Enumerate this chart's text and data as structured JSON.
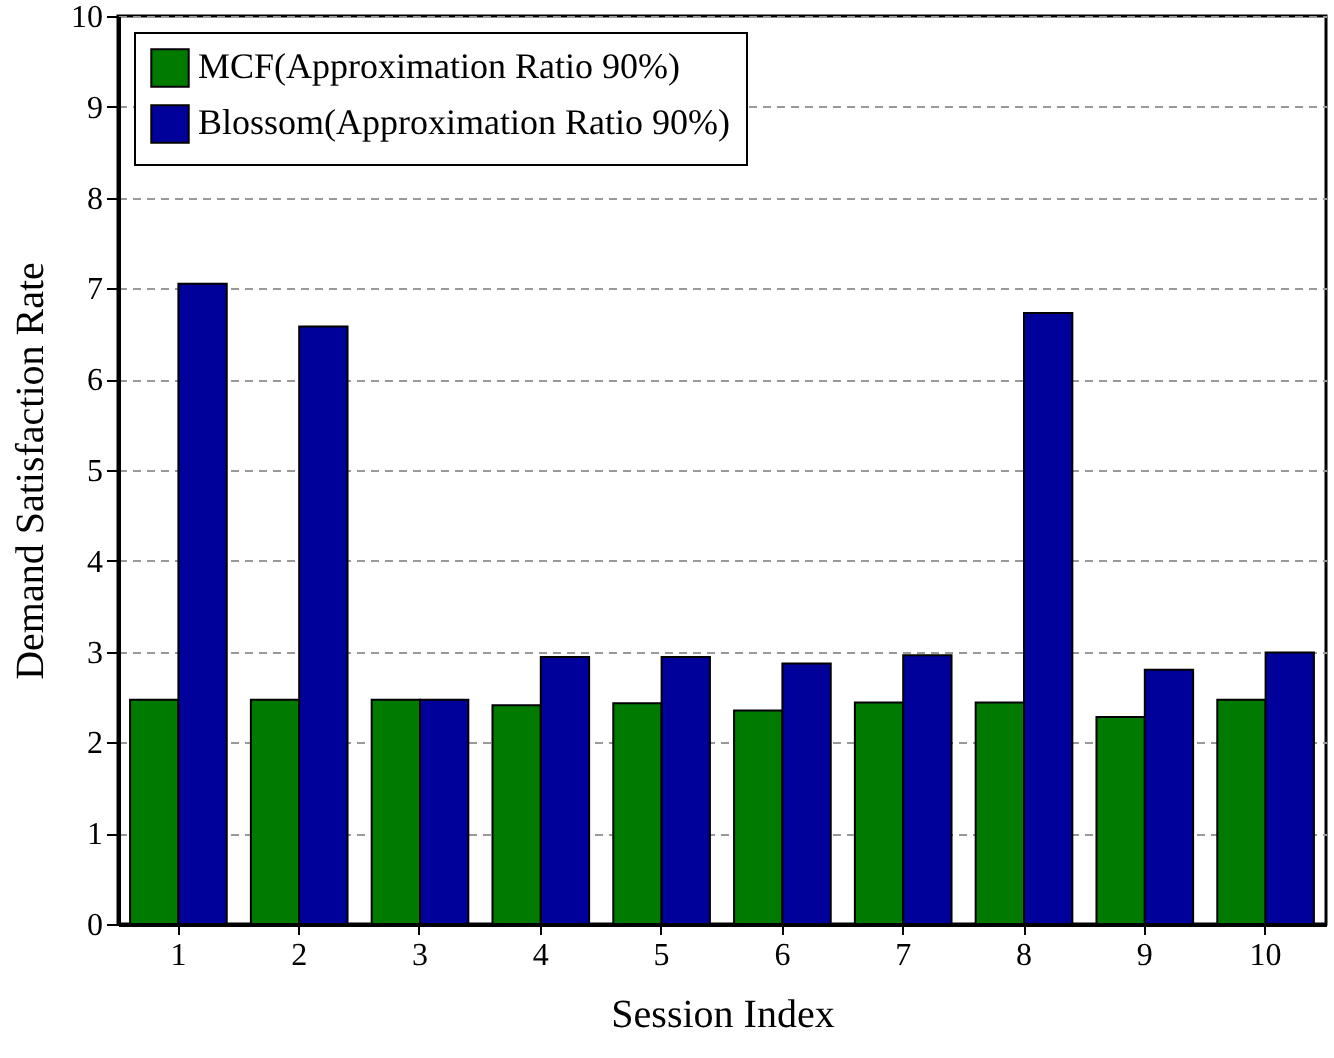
{
  "chart_data": {
    "type": "bar",
    "xlabel": "Session Index",
    "ylabel": "Demand Satisfaction Rate",
    "categories": [
      "1",
      "2",
      "3",
      "4",
      "5",
      "6",
      "7",
      "8",
      "9",
      "10"
    ],
    "series": [
      {
        "name": "MCF(Approximation Ratio 90%)",
        "color": "#007a00",
        "values": [
          2.47,
          2.47,
          2.47,
          2.41,
          2.43,
          2.35,
          2.44,
          2.44,
          2.28,
          2.47
        ]
      },
      {
        "name": "Blossom(Approximation Ratio 90%)",
        "color": "#00009a",
        "values": [
          7.05,
          6.58,
          2.47,
          2.94,
          2.94,
          2.87,
          2.96,
          6.73,
          2.8,
          2.99
        ]
      }
    ],
    "ylim": [
      0,
      10
    ],
    "yticks": [
      0,
      1,
      2,
      3,
      4,
      5,
      6,
      7,
      8,
      9,
      10
    ],
    "grid": "y",
    "legend": "top left"
  }
}
